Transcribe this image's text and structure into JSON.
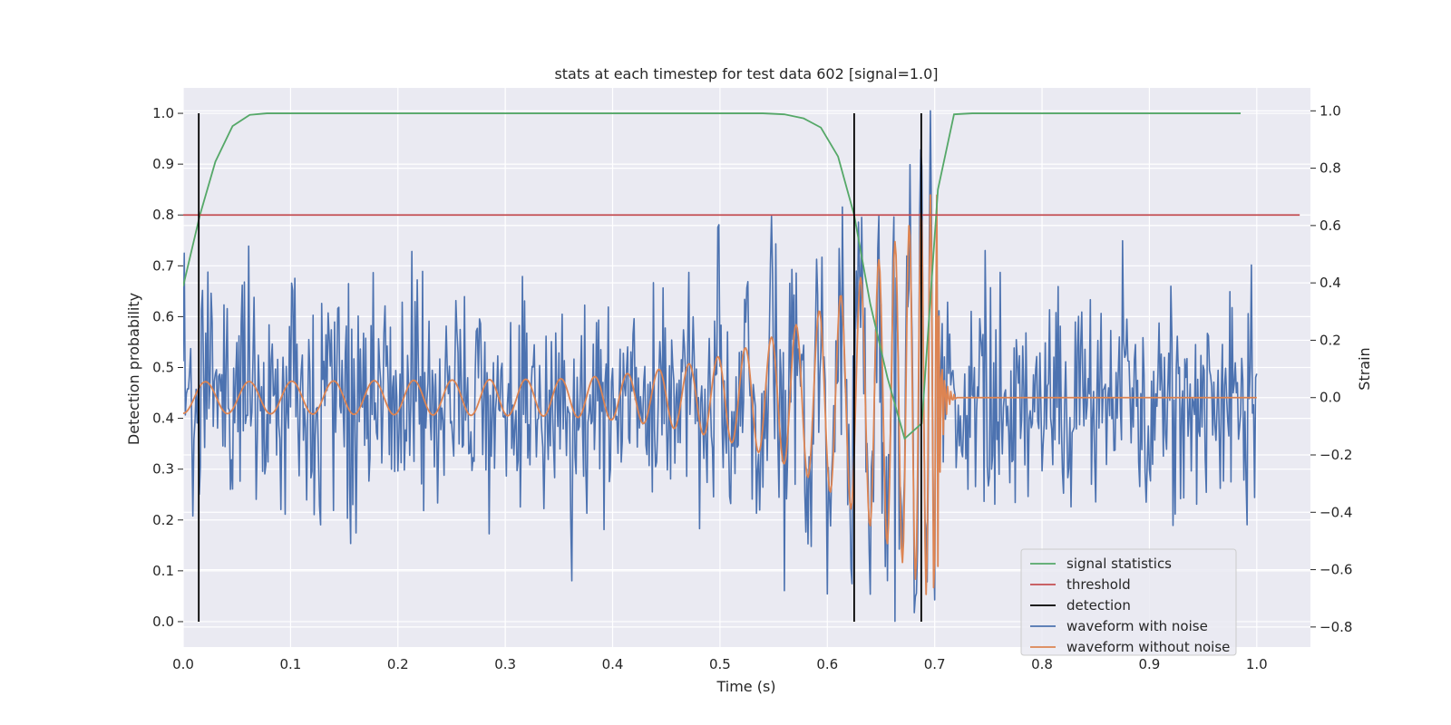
{
  "chart_data": {
    "type": "line",
    "title": "stats at each timestep for test data 602 [signal=1.0]",
    "xlabel": "Time (s)",
    "ylabel": "Detection probability",
    "y2label": "Strain",
    "xlim": [
      0.0,
      1.05
    ],
    "ylim": [
      -0.05,
      1.05
    ],
    "y2lim": [
      -0.87,
      1.08
    ],
    "xticks": [
      "0.0",
      "0.1",
      "0.2",
      "0.3",
      "0.4",
      "0.5",
      "0.6",
      "0.7",
      "0.8",
      "0.9",
      "1.0"
    ],
    "yticks": [
      "0.0",
      "0.1",
      "0.2",
      "0.3",
      "0.4",
      "0.5",
      "0.6",
      "0.7",
      "0.8",
      "0.9",
      "1.0"
    ],
    "y2ticks": [
      "−0.8",
      "−0.6",
      "−0.4",
      "−0.2",
      "0.0",
      "0.2",
      "0.4",
      "0.6",
      "0.8",
      "1.0"
    ],
    "grid": true,
    "legend_position": "lower-right",
    "colors": {
      "signal_statistics": "#55a868",
      "threshold": "#c44e52",
      "detection": "#000000",
      "waveform_with_noise": "#4c72b0",
      "waveform_without_noise": "#dd8452",
      "background": "#eaeaf2",
      "grid": "#ffffff"
    },
    "series": [
      {
        "name": "signal statistics",
        "axis": "left",
        "x": [
          0.0,
          0.0156,
          0.03,
          0.046,
          0.062,
          0.078,
          0.1,
          0.2,
          0.3,
          0.4,
          0.5,
          0.54,
          0.56,
          0.578,
          0.594,
          0.61,
          0.625,
          0.64,
          0.656,
          0.672,
          0.688,
          0.703,
          0.718,
          0.735,
          0.75,
          0.8,
          0.9,
          0.985
        ],
        "y": [
          0.66,
          0.8,
          0.905,
          0.975,
          0.997,
          1.0,
          1.0,
          1.0,
          1.0,
          1.0,
          1.0,
          1.0,
          0.998,
          0.99,
          0.972,
          0.915,
          0.8,
          0.625,
          0.48,
          0.36,
          0.39,
          0.85,
          0.998,
          1.0,
          1.0,
          1.0,
          1.0,
          1.0
        ]
      },
      {
        "name": "threshold",
        "axis": "left",
        "x": [
          0.0,
          1.04
        ],
        "y": [
          0.8,
          0.8
        ]
      },
      {
        "name": "detection",
        "axis": "left",
        "type": "vlines",
        "x": [
          0.0145,
          0.625,
          0.6875
        ],
        "ymin": 0.0,
        "ymax": 1.0
      },
      {
        "name": "waveform with noise",
        "axis": "right",
        "generated": "noise",
        "x_range": [
          0.0,
          1.0
        ],
        "n_points": 1000,
        "std": 0.2,
        "peak": {
          "x": 0.696,
          "y": 1.0
        },
        "min": {
          "x": 0.663,
          "y": -0.78
        }
      },
      {
        "name": "waveform without noise",
        "axis": "right",
        "generated": "chirp",
        "x_range": [
          0.0,
          1.0
        ],
        "merger_time": 0.703,
        "ringdown_end": 0.72,
        "amplitude_start": 0.055,
        "amplitude_peak": 0.75,
        "cycles_to_merger": 27
      }
    ]
  }
}
